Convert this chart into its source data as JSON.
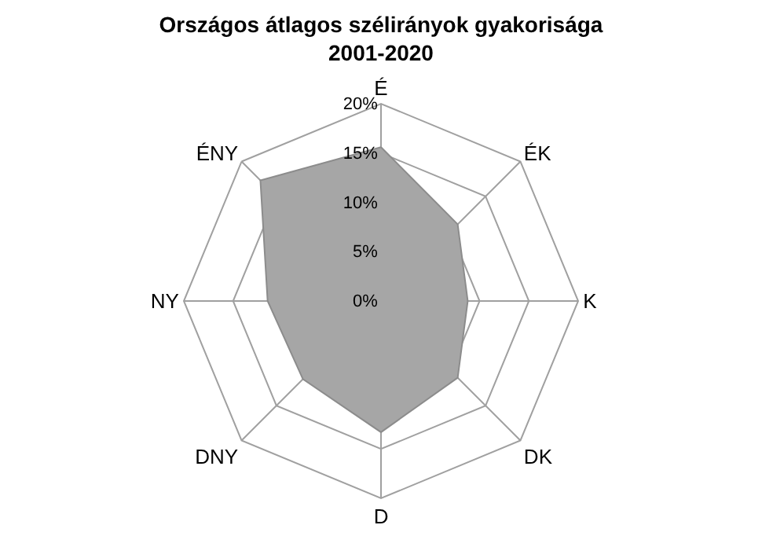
{
  "chart_data": {
    "type": "radar",
    "title": "Országos átlagos szélirányok gyakorisága\n2001-2020",
    "categories": [
      "É",
      "ÉK",
      "K",
      "DK",
      "D",
      "DNY",
      "NY",
      "ÉNY"
    ],
    "series": [
      {
        "color": "#a6a6a6",
        "values": [
          15.6,
          11.0,
          8.8,
          11.0,
          13.3,
          11.2,
          11.5,
          17.3
        ]
      }
    ],
    "ylim": [
      0,
      20
    ],
    "yticks": [
      {
        "value": 0,
        "label": "0%"
      },
      {
        "value": 5,
        "label": "5%"
      },
      {
        "value": 10,
        "label": "10%"
      },
      {
        "value": 15,
        "label": "15%"
      },
      {
        "value": 20,
        "label": "20%"
      }
    ],
    "grid": true
  }
}
